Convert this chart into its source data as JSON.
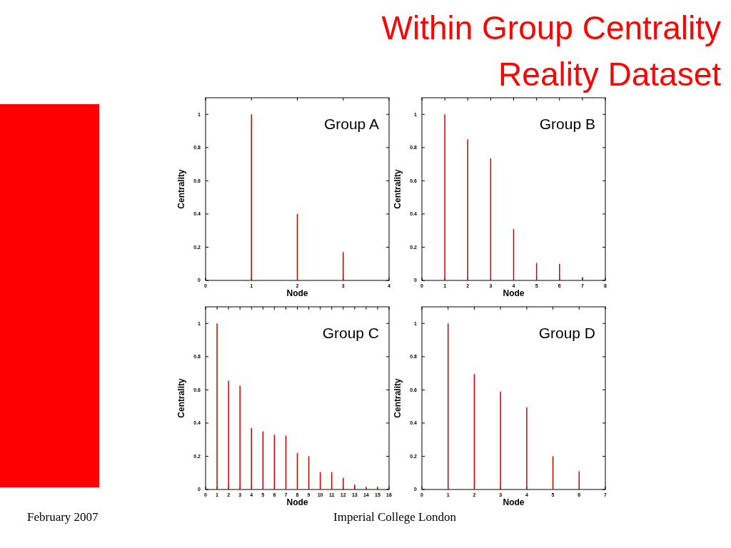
{
  "chart_data": [
    {
      "type": "bar",
      "title": "Group A",
      "xlabel": "Node",
      "ylabel": "Centrality",
      "x": [
        1,
        2,
        3
      ],
      "values": [
        1,
        0.4,
        0.17
      ],
      "color": "#cc0000",
      "xlim": [
        0,
        4
      ],
      "xticks": [
        0,
        1,
        2,
        3,
        4
      ],
      "ylim": [
        0,
        1.1
      ],
      "yticks": [
        0,
        0.2,
        0.4,
        0.6,
        0.8,
        1
      ],
      "annotations": [
        "Within Group Centrality Reality Dataset",
        "February 2007",
        "Imperial College London"
      ]
    },
    {
      "type": "bar",
      "title": "Group B",
      "xlabel": "Node",
      "ylabel": "Centrality",
      "x": [
        1,
        2,
        3,
        4,
        5,
        6,
        7
      ],
      "values": [
        1,
        0.85,
        0.735,
        0.31,
        0.105,
        0.1,
        0.02
      ],
      "color": "#cc0000",
      "xlim": [
        0,
        8
      ],
      "xticks": [
        0,
        1,
        2,
        3,
        4,
        5,
        6,
        7,
        8
      ],
      "ylim": [
        0,
        1.1
      ],
      "yticks": [
        0,
        0.2,
        0.4,
        0.6,
        0.8,
        1
      ]
    },
    {
      "type": "bar",
      "title": "Group C",
      "xlabel": "Node",
      "ylabel": "Centrality",
      "x": [
        1,
        2,
        3,
        4,
        5,
        6,
        7,
        8,
        9,
        10,
        11,
        12,
        13,
        14,
        15
      ],
      "values": [
        1,
        0.655,
        0.625,
        0.37,
        0.35,
        0.33,
        0.325,
        0.22,
        0.2,
        0.105,
        0.105,
        0.07,
        0.03,
        0.01,
        0.01
      ],
      "color": "#cc0000",
      "xlim": [
        0,
        16
      ],
      "xticks": [
        0,
        1,
        2,
        3,
        4,
        5,
        6,
        7,
        8,
        9,
        10,
        11,
        12,
        13,
        14,
        15,
        16
      ],
      "ylim": [
        0,
        1.1
      ],
      "yticks": [
        0,
        0.2,
        0.4,
        0.6,
        0.8,
        1
      ]
    },
    {
      "type": "bar",
      "title": "Group D",
      "xlabel": "Node",
      "ylabel": "Centrality",
      "x": [
        1,
        2,
        3,
        4,
        5,
        6
      ],
      "values": [
        1,
        0.695,
        0.59,
        0.495,
        0.2,
        0.11
      ],
      "color": "#cc0000",
      "xlim": [
        0,
        7
      ],
      "xticks": [
        0,
        1,
        2,
        3,
        4,
        5,
        6,
        7
      ],
      "ylim": [
        0,
        1.1
      ],
      "yticks": [
        0,
        0.2,
        0.4,
        0.6,
        0.8,
        1
      ]
    }
  ]
}
